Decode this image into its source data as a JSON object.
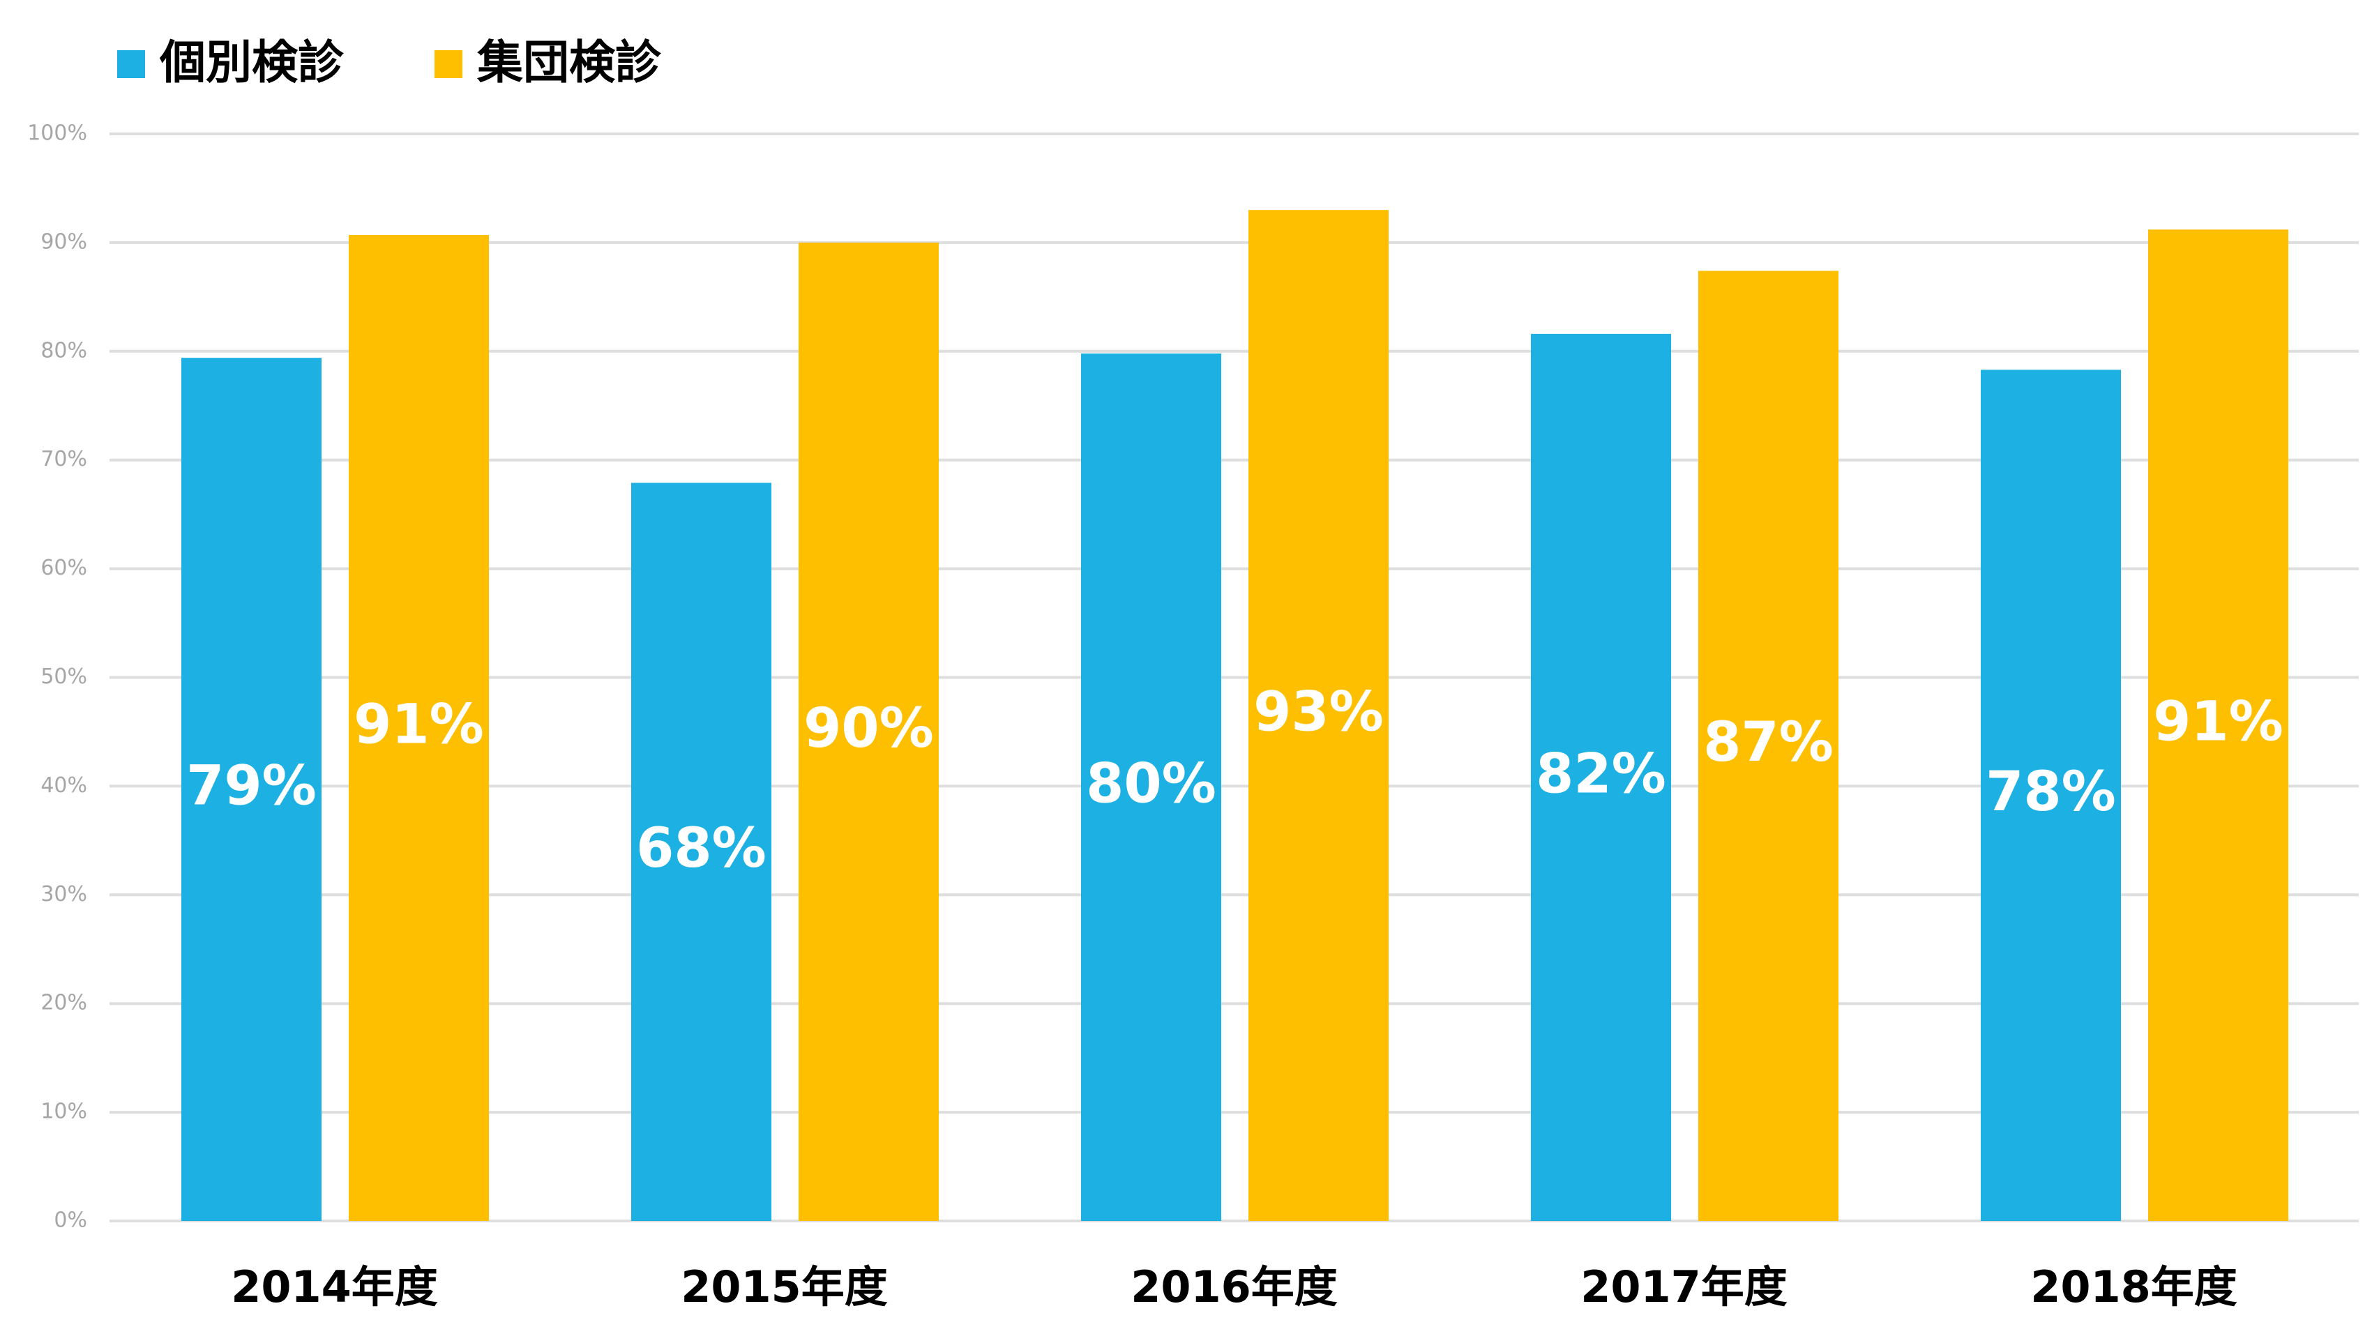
{
  "chart_data": {
    "type": "bar",
    "categories": [
      "2014年度",
      "2015年度",
      "2016年度",
      "2017年度",
      "2018年度"
    ],
    "series": [
      {
        "name": "個別検診",
        "color": "#1cb0e3",
        "values": [
          79.4,
          67.9,
          79.8,
          81.6,
          78.3
        ],
        "value_labels": [
          "79%",
          "68%",
          "80%",
          "82%",
          "78%"
        ]
      },
      {
        "name": "集団検診",
        "color": "#fdbf00",
        "values": [
          90.7,
          90.0,
          93.0,
          87.4,
          91.2
        ],
        "value_labels": [
          "91%",
          "90%",
          "93%",
          "87%",
          "91%"
        ]
      }
    ],
    "ylim": [
      0,
      100
    ],
    "yticks": [
      {
        "value": 0,
        "label": "0%"
      },
      {
        "value": 10,
        "label": "10%"
      },
      {
        "value": 20,
        "label": "20%"
      },
      {
        "value": 30,
        "label": "30%"
      },
      {
        "value": 40,
        "label": "40%"
      },
      {
        "value": 50,
        "label": "50%"
      },
      {
        "value": 60,
        "label": "60%"
      },
      {
        "value": 70,
        "label": "70%"
      },
      {
        "value": 80,
        "label": "80%"
      },
      {
        "value": 90,
        "label": "90%"
      },
      {
        "value": 100,
        "label": "100%"
      }
    ],
    "grid": true
  }
}
